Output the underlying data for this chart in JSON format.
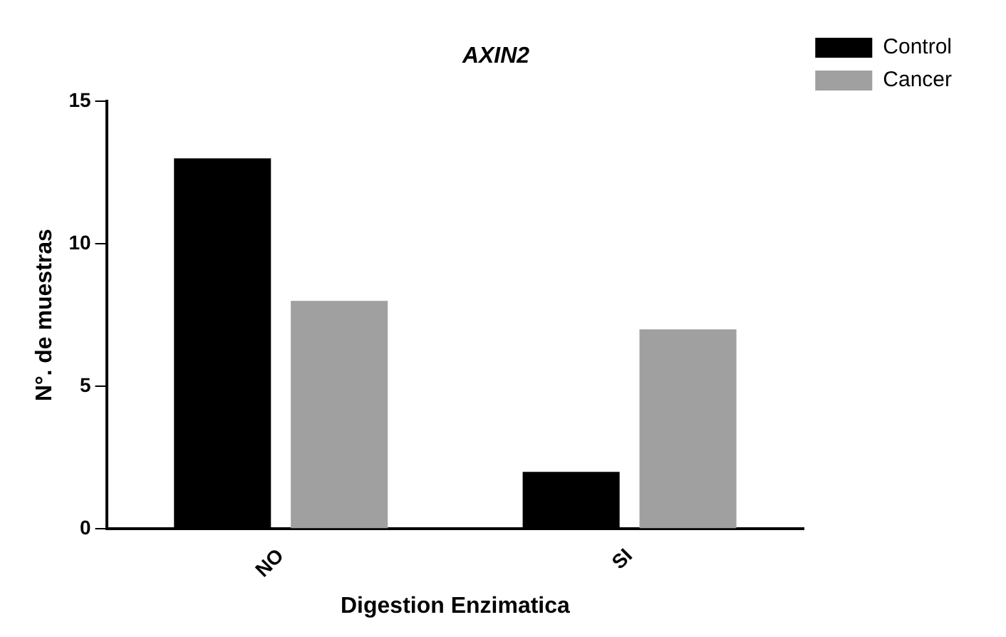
{
  "chart_data": {
    "type": "bar",
    "title": "AXIN2",
    "xlabel": "Digestion Enzimatica",
    "ylabel": "N°. de muestras",
    "categories": [
      "NO",
      "SI"
    ],
    "series": [
      {
        "name": "Control",
        "color": "#000000",
        "values": [
          13,
          2
        ]
      },
      {
        "name": "Cancer",
        "color": "#a0a0a0",
        "values": [
          8,
          7
        ]
      }
    ],
    "ylim": [
      0,
      15
    ],
    "yticks": [
      0,
      5,
      10,
      15
    ],
    "grid": false,
    "legend": "top right"
  }
}
